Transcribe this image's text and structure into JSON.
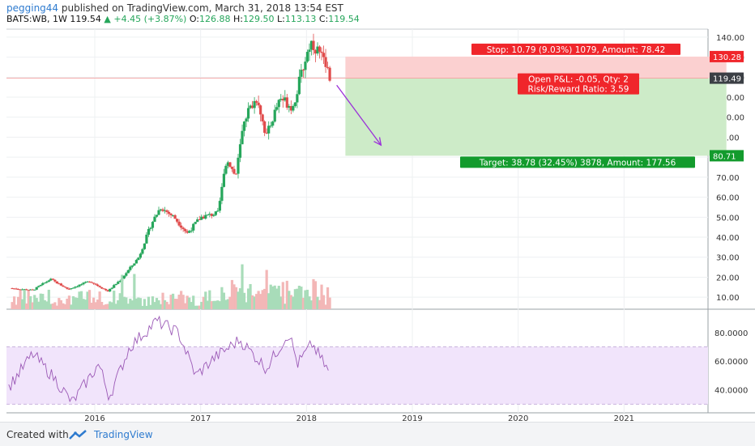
{
  "header": {
    "username": "pegging44",
    "published_text": "published on TradingView.com, March 31, 2018 13:54 EST",
    "symbol": "BATS:WB, 1W",
    "last": "119.54",
    "change": "+4.45 (+3.87%)",
    "o_label": "O:",
    "open": "126.88",
    "h_label": "H:",
    "high": "129.50",
    "l_label": "L:",
    "low": "113.13",
    "c_label": "C:",
    "close": "119.54"
  },
  "chart_data": {
    "type": "candlestick",
    "x_axis": {
      "ticks": [
        "2016",
        "2017",
        "2018",
        "2019",
        "2020",
        "2021"
      ]
    },
    "price_axis": {
      "ticks": [
        "10.00",
        "20.00",
        "30.00",
        "40.00",
        "50.00",
        "60.00",
        "70.00",
        "80.00",
        "90.00",
        "100.00",
        "110.00",
        "120.00",
        "130.00",
        "140.00"
      ],
      "range": [
        4,
        144
      ]
    },
    "price_path": [
      {
        "date": "2015-03-15",
        "price": 14.5
      },
      {
        "date": "2015-06-01",
        "price": 13.5
      },
      {
        "date": "2015-08-01",
        "price": 19
      },
      {
        "date": "2015-10-01",
        "price": 14
      },
      {
        "date": "2015-12-15",
        "price": 18
      },
      {
        "date": "2016-02-15",
        "price": 13
      },
      {
        "date": "2016-04-01",
        "price": 19
      },
      {
        "date": "2016-06-01",
        "price": 30
      },
      {
        "date": "2016-07-15",
        "price": 47
      },
      {
        "date": "2016-08-15",
        "price": 55
      },
      {
        "date": "2016-10-01",
        "price": 50
      },
      {
        "date": "2016-11-15",
        "price": 42
      },
      {
        "date": "2017-01-01",
        "price": 50
      },
      {
        "date": "2017-03-01",
        "price": 52
      },
      {
        "date": "2017-04-01",
        "price": 80
      },
      {
        "date": "2017-05-01",
        "price": 70
      },
      {
        "date": "2017-06-01",
        "price": 100
      },
      {
        "date": "2017-07-15",
        "price": 110
      },
      {
        "date": "2017-08-15",
        "price": 90
      },
      {
        "date": "2017-10-01",
        "price": 110
      },
      {
        "date": "2017-11-15",
        "price": 105
      },
      {
        "date": "2017-12-20",
        "price": 125
      },
      {
        "date": "2018-01-15",
        "price": 138
      },
      {
        "date": "2018-02-15",
        "price": 132
      },
      {
        "date": "2018-03-26",
        "price": 119.54
      }
    ],
    "last_price": 119.49,
    "stop_level": 130.28,
    "target_level": 80.71,
    "stop_label": "Stop: 10.79 (9.03%) 1079, Amount: 78.42",
    "pnl_label": "Open P&L: -0.05, Qty: 2",
    "rr_label": "Risk/Reward Ratio: 3.59",
    "target_label": "Target: 38.78 (32.45%) 3878, Amount: 177.56",
    "forecast_arrow": {
      "from": {
        "date": "2018-04-15",
        "price": 116
      },
      "to": {
        "date": "2018-09-15",
        "price": 86
      }
    },
    "position_span": {
      "start": "2018-05-15",
      "end": "2021-12-20"
    },
    "rsi": {
      "axis_ticks": [
        "40.0000",
        "60.0000",
        "80.0000"
      ],
      "band": [
        30,
        70
      ],
      "range": [
        24,
        94
      ],
      "path": [
        {
          "date": "2015-03-10",
          "rsi": 42
        },
        {
          "date": "2015-06-01",
          "rsi": 65
        },
        {
          "date": "2015-08-15",
          "rsi": 48
        },
        {
          "date": "2015-10-15",
          "rsi": 31
        },
        {
          "date": "2016-01-15",
          "rsi": 58
        },
        {
          "date": "2016-02-20",
          "rsi": 35
        },
        {
          "date": "2016-05-01",
          "rsi": 70
        },
        {
          "date": "2016-08-01",
          "rsi": 88
        },
        {
          "date": "2016-10-15",
          "rsi": 80
        },
        {
          "date": "2016-12-15",
          "rsi": 50
        },
        {
          "date": "2017-02-15",
          "rsi": 62
        },
        {
          "date": "2017-05-15",
          "rsi": 75
        },
        {
          "date": "2017-08-15",
          "rsi": 55
        },
        {
          "date": "2017-11-01",
          "rsi": 80
        },
        {
          "date": "2017-12-01",
          "rsi": 58
        },
        {
          "date": "2018-01-20",
          "rsi": 72
        },
        {
          "date": "2018-03-20",
          "rsi": 52
        }
      ]
    },
    "colors": {
      "up": "#26a65b",
      "down": "#e04b4b",
      "stop_zone": "#fbd0d0",
      "target_zone": "#cdebc8",
      "rsi_line": "#9b59b6",
      "rsi_band": "#f1e4fb",
      "arrow": "#9b30d9",
      "stop_tag": "#f0262b",
      "target_tag": "#139b2d",
      "last_price_tag": "#3b3f45"
    }
  },
  "footer": {
    "created_with": "Created with",
    "brand": "TradingView"
  }
}
